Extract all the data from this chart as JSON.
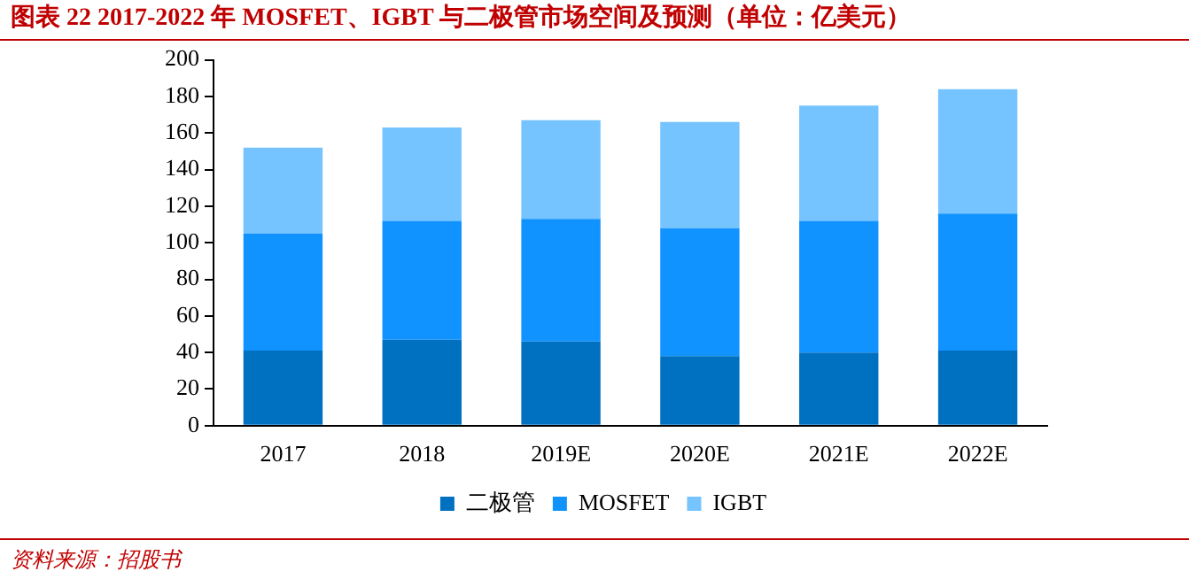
{
  "chart_data": {
    "type": "bar",
    "title": "图表 22   2017-2022 年 MOSFET、IGBT 与二极管市场空间及预测（单位：亿美元）",
    "categories": [
      "2017",
      "2018",
      "2019E",
      "2020E",
      "2021E",
      "2022E"
    ],
    "stacked": true,
    "series": [
      {
        "name": "二极管",
        "color": "#0070c0",
        "values": [
          41,
          47,
          46,
          38,
          40,
          41
        ]
      },
      {
        "name": "MOSFET",
        "color": "#1193ff",
        "values": [
          64,
          65,
          67,
          70,
          72,
          75
        ]
      },
      {
        "name": "IGBT",
        "color": "#75c3ff",
        "values": [
          47,
          51,
          54,
          58,
          63,
          68
        ]
      }
    ],
    "ylim": [
      0,
      200
    ],
    "yticks": [
      0,
      20,
      40,
      60,
      80,
      100,
      120,
      140,
      160,
      180,
      200
    ],
    "grid": false,
    "legend": "bottom",
    "annotations": [
      "资料来源：招股书"
    ]
  }
}
